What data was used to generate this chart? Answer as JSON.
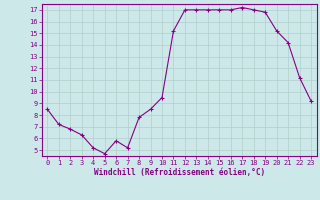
{
  "x": [
    0,
    1,
    2,
    3,
    4,
    5,
    6,
    7,
    8,
    9,
    10,
    11,
    12,
    13,
    14,
    15,
    16,
    17,
    18,
    19,
    20,
    21,
    22,
    23
  ],
  "y": [
    8.5,
    7.2,
    6.8,
    6.3,
    5.2,
    4.7,
    5.8,
    5.2,
    7.8,
    8.5,
    9.5,
    15.2,
    17.0,
    17.0,
    17.0,
    17.0,
    17.0,
    17.2,
    17.0,
    16.8,
    15.2,
    14.2,
    11.2,
    9.2
  ],
  "line_color": "#880088",
  "marker": "+",
  "marker_size": 3,
  "marker_lw": 0.8,
  "line_width": 0.8,
  "bg_color": "#cce8e8",
  "grid_color": "#b0d0cc",
  "xlabel": "Windchill (Refroidissement éolien,°C)",
  "ylim": [
    4.5,
    17.5
  ],
  "xlim": [
    -0.5,
    23.5
  ],
  "yticks": [
    5,
    6,
    7,
    8,
    9,
    10,
    11,
    12,
    13,
    14,
    15,
    16,
    17
  ],
  "xticks": [
    0,
    1,
    2,
    3,
    4,
    5,
    6,
    7,
    8,
    9,
    10,
    11,
    12,
    13,
    14,
    15,
    16,
    17,
    18,
    19,
    20,
    21,
    22,
    23
  ],
  "tick_color": "#880088",
  "label_color": "#880088",
  "spine_color": "#880088",
  "tick_fontsize": 5,
  "xlabel_fontsize": 5.5
}
